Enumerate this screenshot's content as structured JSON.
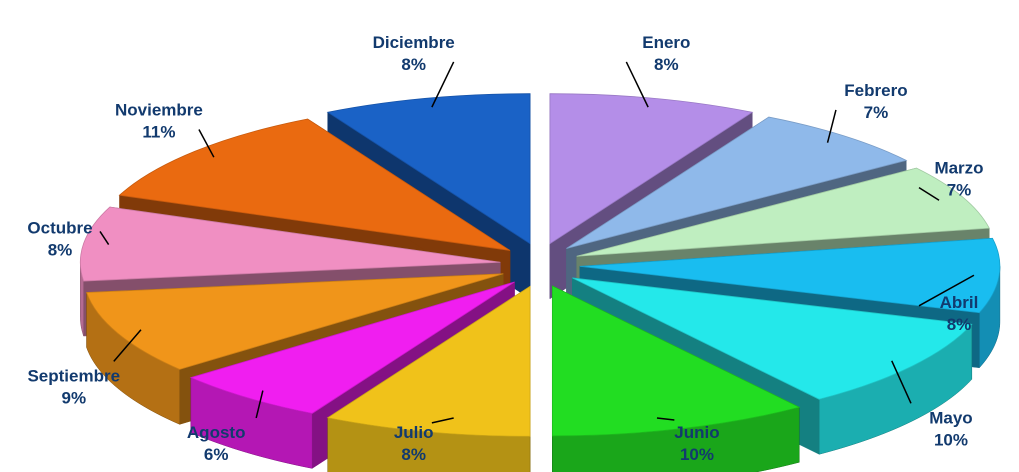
{
  "chart_data": {
    "type": "pie",
    "style": "3d-exploded",
    "title": "",
    "legend": "none",
    "slices": [
      {
        "name": "Enero",
        "value": 8,
        "label": "8%",
        "color": "#b48ee8"
      },
      {
        "name": "Febrero",
        "value": 7,
        "label": "7%",
        "color": "#8fb9ea"
      },
      {
        "name": "Marzo",
        "value": 7,
        "label": "7%",
        "color": "#bfeec0"
      },
      {
        "name": "Abril",
        "value": 8,
        "label": "8%",
        "color": "#19bdf0"
      },
      {
        "name": "Mayo",
        "value": 10,
        "label": "10%",
        "color": "#24e8ea"
      },
      {
        "name": "Junio",
        "value": 10,
        "label": "10%",
        "color": "#22dd22"
      },
      {
        "name": "Julio",
        "value": 8,
        "label": "8%",
        "color": "#f0c21a"
      },
      {
        "name": "Agosto",
        "value": 6,
        "label": "6%",
        "color": "#f01ef0"
      },
      {
        "name": "Septiembre",
        "value": 9,
        "label": "9%",
        "color": "#f0951a"
      },
      {
        "name": "Octubre",
        "value": 8,
        "label": "8%",
        "color": "#f08fc2"
      },
      {
        "name": "Noviembre",
        "value": 11,
        "label": "11%",
        "color": "#ea6a10"
      },
      {
        "name": "Diciembre",
        "value": 8,
        "label": "8%",
        "color": "#1a62c6"
      }
    ]
  }
}
